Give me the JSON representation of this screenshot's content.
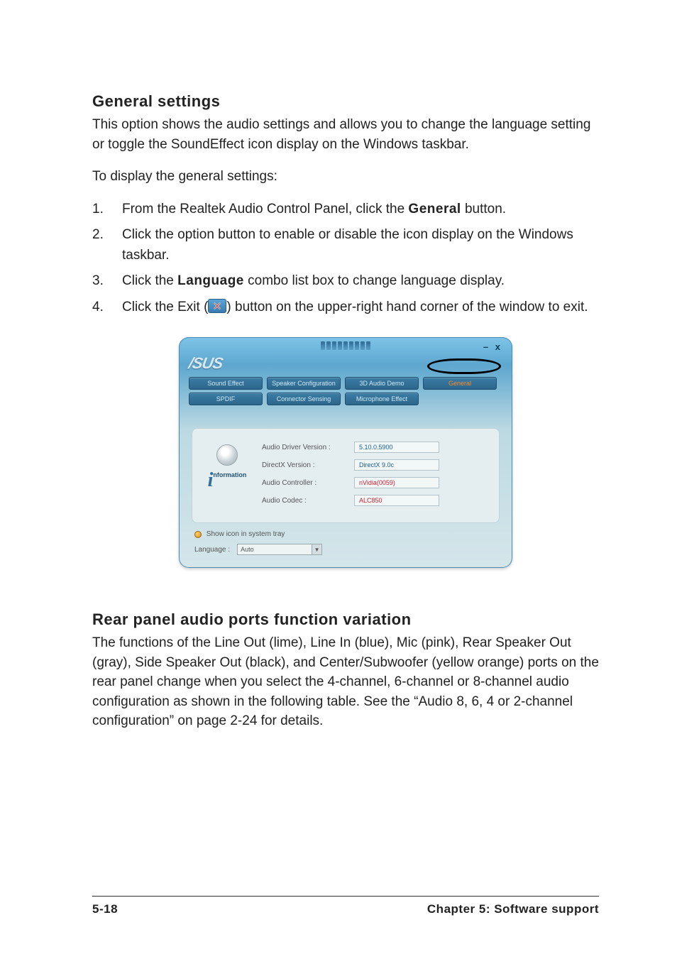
{
  "section1": {
    "heading": "General settings",
    "intro": "This option shows the audio settings and allows you to change the language setting or toggle the SoundEffect icon display on the Windows taskbar.",
    "lead": "To display the general settings:",
    "steps": [
      {
        "n": "1.",
        "before": "From the Realtek Audio Control Panel, click the ",
        "bold": "General",
        "after": " button."
      },
      {
        "n": "2.",
        "before": "Click the option button to enable or disable the icon display on the Windows taskbar.",
        "bold": "",
        "after": ""
      },
      {
        "n": "3.",
        "before": "Click the ",
        "bold": "Language",
        "after": " combo list box to change language display."
      },
      {
        "n": "4.",
        "before": "Click the Exit (",
        "bold": "",
        "after": ") button on the upper-right hand corner of the window to exit.",
        "hasIcon": true
      }
    ]
  },
  "panel": {
    "logo": "/SUS",
    "winctl": "– x",
    "tabs_row1": [
      "Sound Effect",
      "Speaker Configuration",
      "3D Audio Demo",
      "General"
    ],
    "tabs_row2": [
      "SPDIF",
      "Connector Sensing",
      "Microphone Effect"
    ],
    "info_label": "nformation",
    "rows": [
      {
        "k": "Audio Driver Version :",
        "v": "5.10.0.5900",
        "cls": "v-blue"
      },
      {
        "k": "DirectX Version :",
        "v": "DirectX 9.0c",
        "cls": "v-blue"
      },
      {
        "k": "Audio Controller :",
        "v": "nVidia(0059)",
        "cls": "v-red"
      },
      {
        "k": "Audio Codec :",
        "v": "ALC850",
        "cls": "v-red"
      }
    ],
    "show_tray": "Show icon in system tray",
    "lang_label": "Language :",
    "lang_value": "Auto"
  },
  "section2": {
    "heading": "Rear panel audio ports function variation",
    "body": "The functions of the Line Out (lime), Line In (blue), Mic (pink), Rear Speaker Out (gray), Side Speaker Out (black), and Center/Subwoofer (yellow orange) ports on the rear panel change when you select the 4-channel, 6-channel or 8-channel audio configuration as shown in the following table. See the “Audio 8, 6, 4 or 2-channel configuration” on page 2-24 for details."
  },
  "footer": {
    "left": "5-18",
    "right": "Chapter 5: Software support"
  }
}
